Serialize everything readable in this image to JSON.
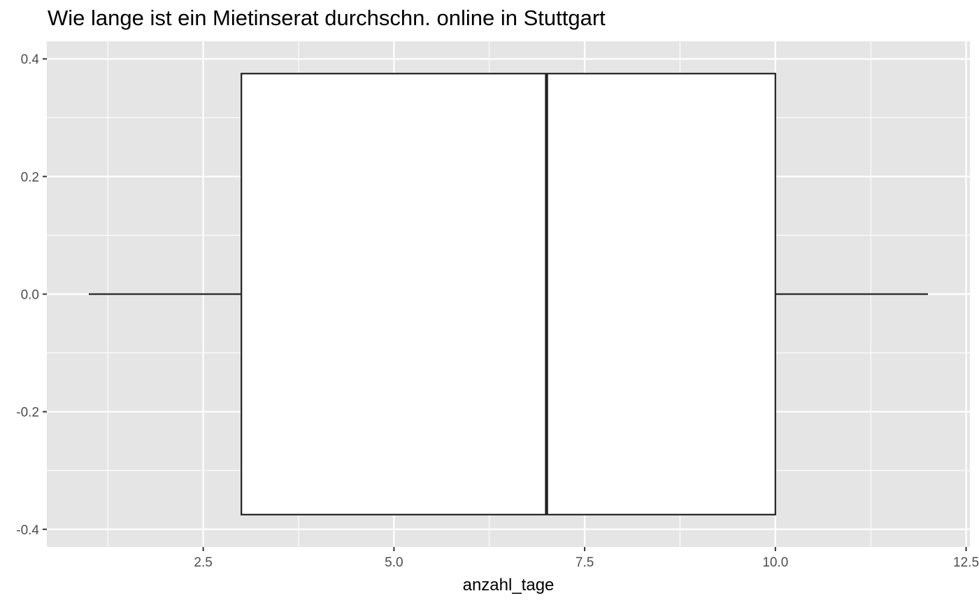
{
  "chart_data": {
    "type": "boxplot",
    "title": "Wie lange ist ein Mietinserat durchschn. online in Stuttgart",
    "xlabel": "anzahl_tage",
    "ylabel": "",
    "xlim": [
      0.45,
      12.55
    ],
    "ylim": [
      -0.43,
      0.43
    ],
    "x_ticks": [
      2.5,
      5.0,
      7.5,
      10.0,
      12.5
    ],
    "x_tick_labels": [
      "2.5",
      "5.0",
      "7.5",
      "10.0",
      "12.5"
    ],
    "y_ticks": [
      0.4,
      0.2,
      0.0,
      -0.2,
      -0.4
    ],
    "y_tick_labels": [
      "0.4",
      "0.2",
      "0.0",
      "-0.2",
      "-0.4"
    ],
    "grid": true,
    "box": {
      "min": 1,
      "q1": 3,
      "median": 7,
      "q3": 10,
      "max": 12,
      "y_center": 0.0,
      "y_half_height": 0.375
    },
    "colors": {
      "panel_background": "#e5e5e5",
      "grid": "#ffffff",
      "box_fill": "#ffffff",
      "box_stroke": "#222222",
      "tick_text": "#4d4d4d",
      "tick_mark": "#333333"
    }
  }
}
